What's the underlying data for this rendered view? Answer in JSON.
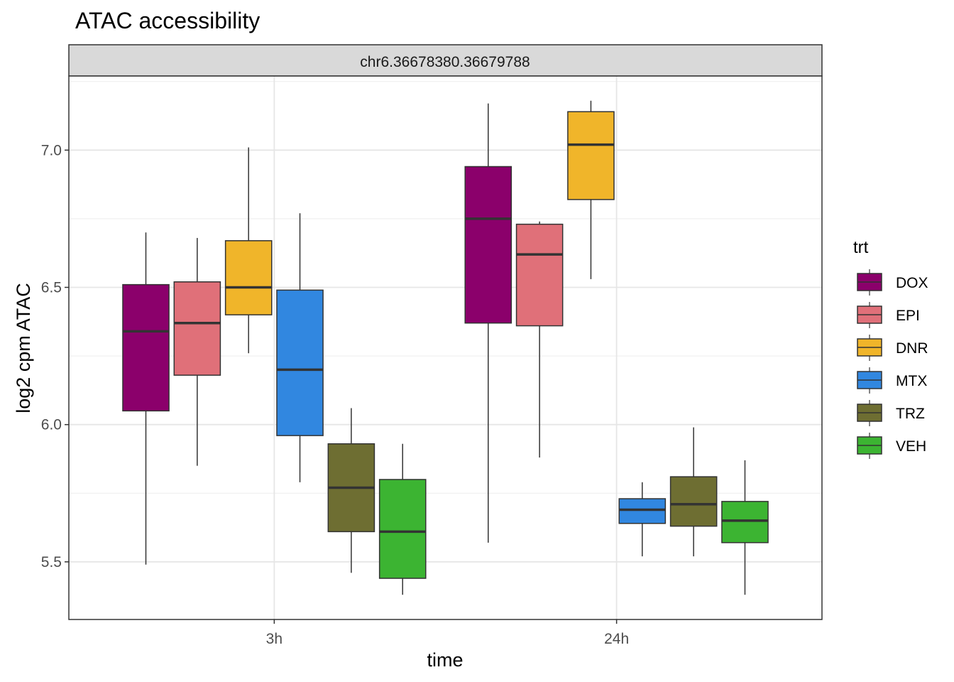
{
  "chart_data": {
    "type": "box",
    "title": "ATAC accessibility",
    "facet_label": "chr6.36678380.36679788",
    "xlabel": "time",
    "ylabel": "log2 cpm ATAC",
    "categories": [
      "3h",
      "24h"
    ],
    "ylim": [
      5.29,
      7.27
    ],
    "y_ticks": [
      {
        "value": 5.5,
        "label": "5.5"
      },
      {
        "value": 6.0,
        "label": "6.0"
      },
      {
        "value": 6.5,
        "label": "6.5"
      },
      {
        "value": 7.0,
        "label": "7.0"
      }
    ],
    "y_minor_ticks": [
      5.25,
      5.75,
      6.25,
      6.75,
      7.25
    ],
    "grid": true,
    "legend": {
      "title": "trt",
      "position": "right"
    },
    "series": [
      {
        "name": "DOX",
        "color": "#8B006B",
        "boxes": [
          {
            "category": "3h",
            "min": 5.49,
            "q1": 6.05,
            "median": 6.34,
            "q3": 6.51,
            "max": 6.7
          },
          {
            "category": "24h",
            "min": 5.57,
            "q1": 6.37,
            "median": 6.75,
            "q3": 6.94,
            "max": 7.17
          }
        ]
      },
      {
        "name": "EPI",
        "color": "#E07079",
        "boxes": [
          {
            "category": "3h",
            "min": 5.85,
            "q1": 6.18,
            "median": 6.37,
            "q3": 6.52,
            "max": 6.68
          },
          {
            "category": "24h",
            "min": 5.88,
            "q1": 6.36,
            "median": 6.62,
            "q3": 6.73,
            "max": 6.74
          }
        ]
      },
      {
        "name": "DNR",
        "color": "#F0B52A",
        "boxes": [
          {
            "category": "3h",
            "min": 6.26,
            "q1": 6.4,
            "median": 6.5,
            "q3": 6.67,
            "max": 7.01
          },
          {
            "category": "24h",
            "min": 6.53,
            "q1": 6.82,
            "median": 7.02,
            "q3": 7.14,
            "max": 7.18
          }
        ]
      },
      {
        "name": "MTX",
        "color": "#3187E0",
        "boxes": [
          {
            "category": "3h",
            "min": 5.79,
            "q1": 5.96,
            "median": 6.2,
            "q3": 6.49,
            "max": 6.77
          },
          {
            "category": "24h",
            "min": 5.52,
            "q1": 5.64,
            "median": 5.69,
            "q3": 5.73,
            "max": 5.79
          }
        ]
      },
      {
        "name": "TRZ",
        "color": "#6E6E32",
        "boxes": [
          {
            "category": "3h",
            "min": 5.46,
            "q1": 5.61,
            "median": 5.77,
            "q3": 5.93,
            "max": 6.06
          },
          {
            "category": "24h",
            "min": 5.52,
            "q1": 5.63,
            "median": 5.71,
            "q3": 5.81,
            "max": 5.99
          }
        ]
      },
      {
        "name": "VEH",
        "color": "#3CB432",
        "boxes": [
          {
            "category": "3h",
            "min": 5.38,
            "q1": 5.44,
            "median": 5.61,
            "q3": 5.8,
            "max": 5.93
          },
          {
            "category": "24h",
            "min": 5.38,
            "q1": 5.57,
            "median": 5.65,
            "q3": 5.72,
            "max": 5.87
          }
        ]
      }
    ]
  }
}
